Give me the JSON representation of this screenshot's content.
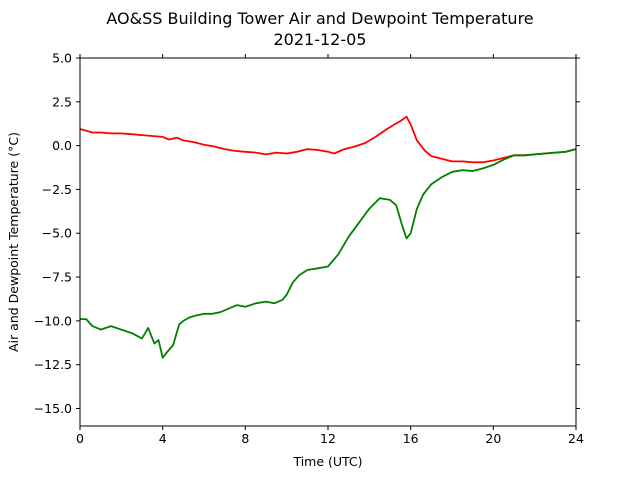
{
  "chart_data": {
    "type": "line",
    "title": "AO&SS Building Tower Air and Dewpoint Temperature",
    "subtitle": "2021-12-05",
    "xlabel": "Time (UTC)",
    "ylabel": "Air and Dewpoint Temperature (°C)",
    "xlim": [
      0,
      24
    ],
    "ylim": [
      -16,
      5
    ],
    "xticks": [
      0,
      4,
      8,
      12,
      16,
      20,
      24
    ],
    "yticks": [
      5.0,
      2.5,
      0.0,
      -2.5,
      -5.0,
      -7.5,
      -10.0,
      -12.5,
      -15.0
    ],
    "xtick_labels": [
      "0",
      "4",
      "8",
      "12",
      "16",
      "20",
      "24"
    ],
    "ytick_labels": [
      "5.0",
      "2.5",
      "0.0",
      "−2.5",
      "−5.0",
      "−7.5",
      "−10.0",
      "−12.5",
      "−15.0"
    ],
    "grid": false,
    "series": [
      {
        "color": "#ff0000",
        "x": [
          0,
          0.3,
          0.6,
          1,
          1.5,
          2,
          2.5,
          3,
          3.5,
          4,
          4.3,
          4.7,
          5,
          5.5,
          6,
          6.5,
          7,
          7.5,
          8,
          8.5,
          9,
          9.5,
          10,
          10.5,
          11,
          11.5,
          12,
          12.3,
          12.8,
          13.3,
          13.8,
          14.3,
          14.8,
          15.2,
          15.5,
          15.8,
          16,
          16.3,
          16.7,
          17,
          17.5,
          18,
          18.5,
          19,
          19.5,
          20,
          20.5,
          21,
          21.5,
          22,
          22.5,
          23,
          23.5,
          24
        ],
        "y": [
          0.95,
          0.85,
          0.75,
          0.75,
          0.7,
          0.7,
          0.65,
          0.6,
          0.55,
          0.5,
          0.35,
          0.45,
          0.3,
          0.2,
          0.05,
          -0.05,
          -0.2,
          -0.3,
          -0.35,
          -0.4,
          -0.5,
          -0.4,
          -0.45,
          -0.35,
          -0.2,
          -0.25,
          -0.35,
          -0.45,
          -0.2,
          -0.05,
          0.15,
          0.5,
          0.9,
          1.2,
          1.4,
          1.65,
          1.2,
          0.3,
          -0.3,
          -0.6,
          -0.75,
          -0.9,
          -0.9,
          -0.95,
          -0.95,
          -0.85,
          -0.7,
          -0.55,
          -0.55,
          -0.5,
          -0.45,
          -0.4,
          -0.35,
          -0.2
        ]
      },
      {
        "color": "#008000",
        "x": [
          0,
          0.3,
          0.6,
          1,
          1.5,
          2,
          2.5,
          3,
          3.3,
          3.6,
          3.8,
          4,
          4.2,
          4.5,
          4.8,
          5,
          5.3,
          5.6,
          6,
          6.4,
          6.8,
          7.2,
          7.6,
          8,
          8.5,
          9,
          9.4,
          9.8,
          10,
          10.3,
          10.6,
          11,
          11.5,
          12,
          12.5,
          13,
          13.5,
          14,
          14.5,
          15,
          15.3,
          15.6,
          15.8,
          16,
          16.3,
          16.6,
          17,
          17.5,
          18,
          18.5,
          19,
          19.5,
          20,
          20.5,
          21,
          21.5,
          22,
          22.5,
          23,
          23.5,
          24
        ],
        "y": [
          -9.9,
          -9.9,
          -10.3,
          -10.5,
          -10.3,
          -10.5,
          -10.7,
          -11.0,
          -10.4,
          -11.3,
          -11.1,
          -12.1,
          -11.8,
          -11.4,
          -10.2,
          -10.0,
          -9.8,
          -9.7,
          -9.6,
          -9.6,
          -9.5,
          -9.3,
          -9.1,
          -9.2,
          -9.0,
          -8.9,
          -9.0,
          -8.8,
          -8.5,
          -7.8,
          -7.4,
          -7.1,
          -7.0,
          -6.9,
          -6.2,
          -5.2,
          -4.4,
          -3.6,
          -3.0,
          -3.1,
          -3.4,
          -4.6,
          -5.3,
          -5.0,
          -3.6,
          -2.8,
          -2.2,
          -1.8,
          -1.5,
          -1.4,
          -1.45,
          -1.3,
          -1.1,
          -0.8,
          -0.55,
          -0.55,
          -0.5,
          -0.45,
          -0.4,
          -0.35,
          -0.2
        ]
      }
    ]
  }
}
